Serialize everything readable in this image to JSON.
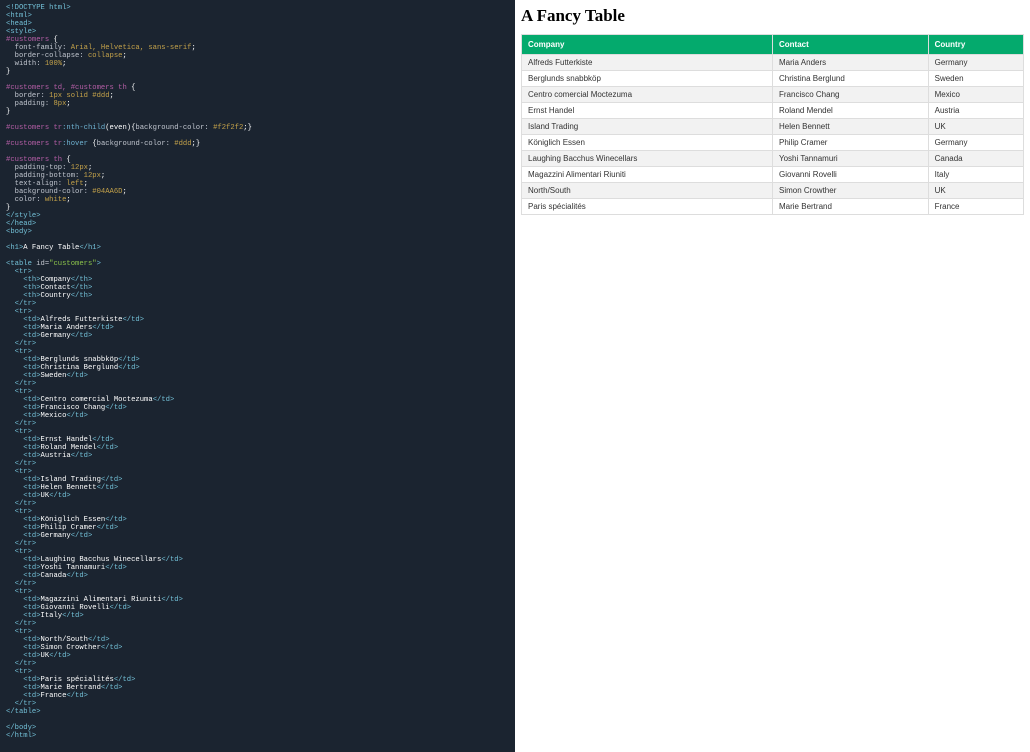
{
  "preview": {
    "heading": "A Fancy Table",
    "table": {
      "header_bg": "#04AA6D",
      "even_row_bg": "#f2f2f2",
      "columns": [
        "Company",
        "Contact",
        "Country"
      ],
      "rows": [
        [
          "Alfreds Futterkiste",
          "Maria Anders",
          "Germany"
        ],
        [
          "Berglunds snabbköp",
          "Christina Berglund",
          "Sweden"
        ],
        [
          "Centro comercial Moctezuma",
          "Francisco Chang",
          "Mexico"
        ],
        [
          "Ernst Handel",
          "Roland Mendel",
          "Austria"
        ],
        [
          "Island Trading",
          "Helen Bennett",
          "UK"
        ],
        [
          "Königlich Essen",
          "Philip Cramer",
          "Germany"
        ],
        [
          "Laughing Bacchus Winecellars",
          "Yoshi Tannamuri",
          "Canada"
        ],
        [
          "Magazzini Alimentari Riuniti",
          "Giovanni Rovelli",
          "Italy"
        ],
        [
          "North/South",
          "Simon Crowther",
          "UK"
        ],
        [
          "Paris spécialités",
          "Marie Bertrand",
          "France"
        ]
      ]
    }
  },
  "code": {
    "doctype": "<!DOCTYPE html>",
    "css": {
      "selector1": "#customers",
      "rules1": [
        [
          "font-family",
          "Arial, Helvetica, sans-serif"
        ],
        [
          "border-collapse",
          "collapse"
        ],
        [
          "width",
          "100%"
        ]
      ],
      "selector2": "#customers td, #customers th",
      "rules2": [
        [
          "border",
          "1px solid #ddd"
        ],
        [
          "padding",
          "8px"
        ]
      ],
      "selector3a": "#customers tr",
      "pseudo3a": ":nth-child",
      "pseudo3a_arg": "(even)",
      "rule3a": [
        "background-color",
        "#f2f2f2"
      ],
      "selector3b": "#customers tr",
      "pseudo3b": ":hover",
      "rule3b": [
        "background-color",
        "#ddd"
      ],
      "selector4": "#customers th",
      "rules4": [
        [
          "padding-top",
          "12px"
        ],
        [
          "padding-bottom",
          "12px"
        ],
        [
          "text-align",
          "left"
        ],
        [
          "background-color",
          "#04AA6D"
        ],
        [
          "color",
          "white"
        ]
      ]
    },
    "body_heading": "A Fancy Table",
    "table_id": "customers"
  }
}
